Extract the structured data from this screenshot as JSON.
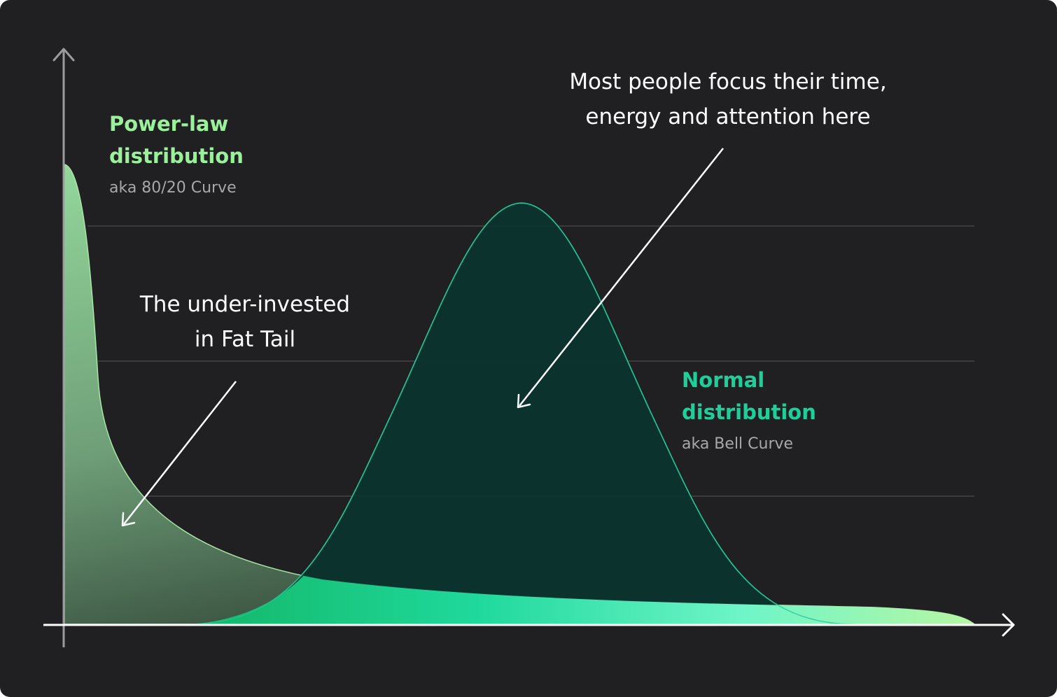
{
  "power_law": {
    "title_line1": "Power-law",
    "title_line2": "distribution",
    "subtitle": "aka 80/20 Curve",
    "color": "#9bf09b"
  },
  "normal": {
    "title_line1": "Normal",
    "title_line2": "distribution",
    "subtitle": "aka Bell Curve",
    "color": "#1fcf9a"
  },
  "annotations": {
    "focus_line1": "Most people focus their time,",
    "focus_line2": "energy and attention here",
    "tail_line1": "The under-invested",
    "tail_line2": "in Fat Tail"
  },
  "colors": {
    "background": "#202022",
    "axis": "#9b9b9f",
    "grid": "#3a3a3d",
    "bell_fill": "#0a332c",
    "bell_stroke": "#1fc596",
    "power_fill_top": "#8fd494",
    "power_fill_bottom": "#3a5a45",
    "tail_gradient_start": "#16c77a",
    "tail_gradient_end": "#b4f7a8"
  }
}
